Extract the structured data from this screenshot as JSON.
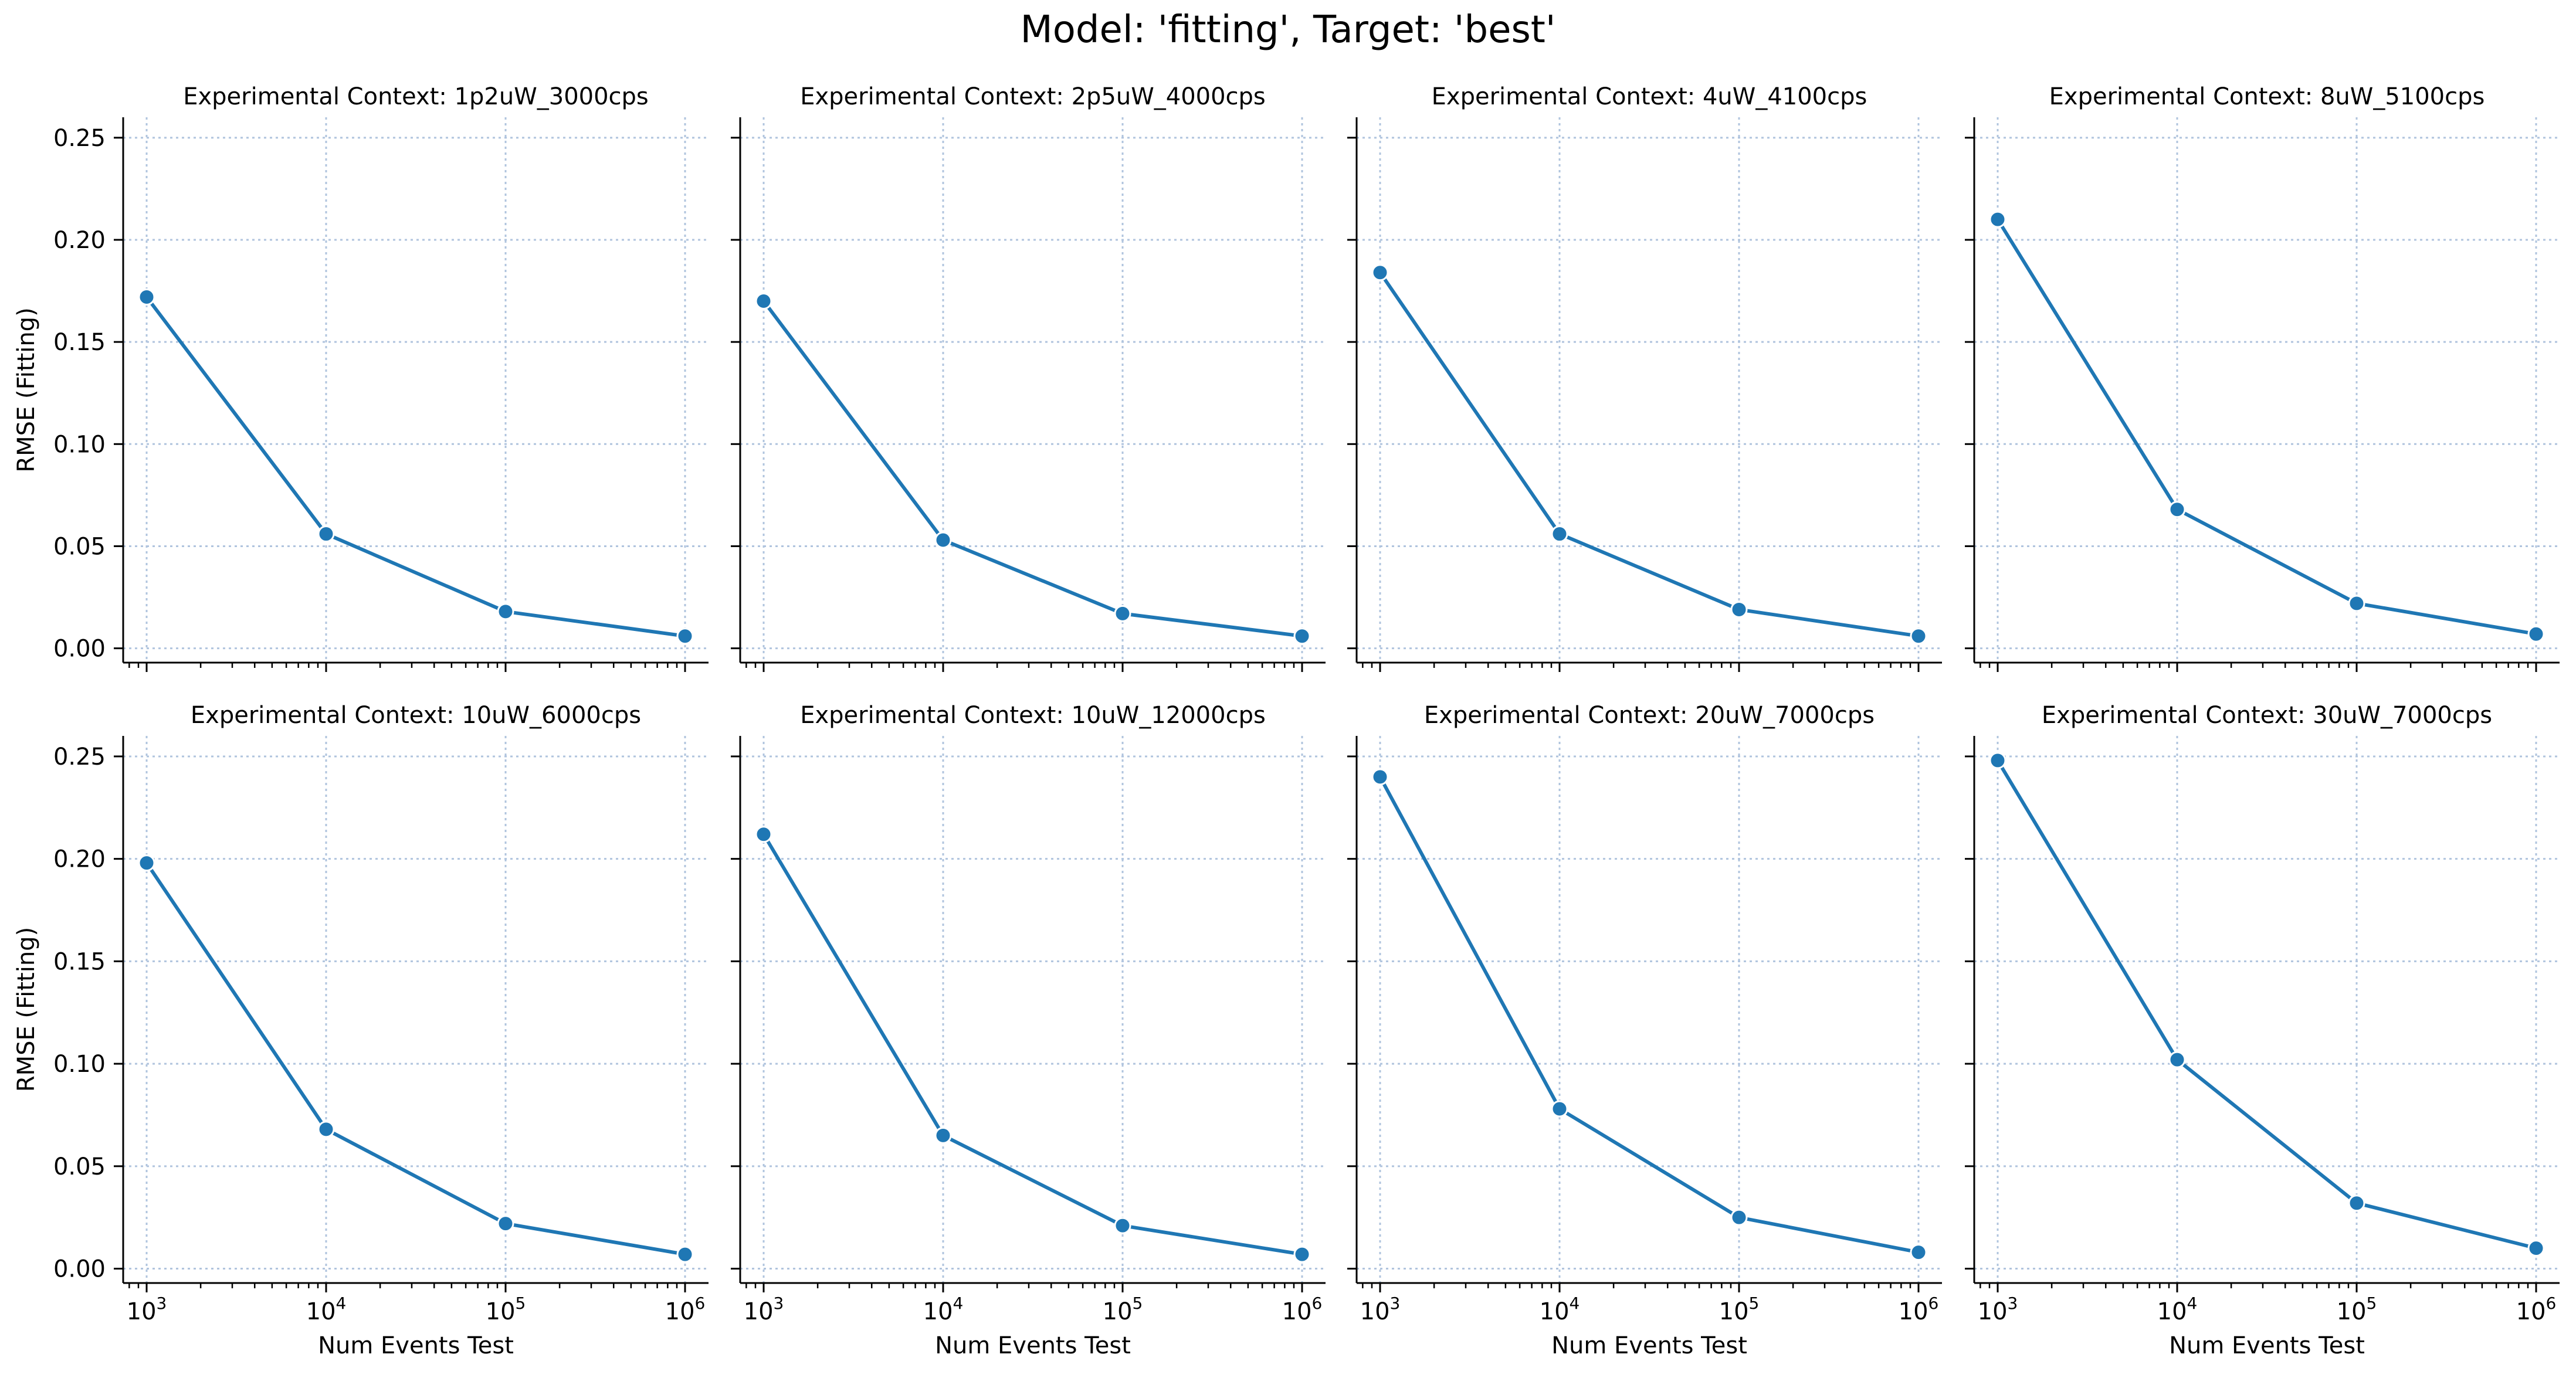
{
  "figure_title": "Model: 'fitting', Target: 'best'",
  "colors": {
    "series": "#1f77b4",
    "grid": "#b0c4de",
    "axis": "#000000"
  },
  "chart_data": [
    {
      "type": "line",
      "title": "Experimental Context: 1p2uW_3000cps",
      "xlabel": "",
      "ylabel": "RMSE (Fitting)",
      "xscale": "log",
      "x": [
        1000,
        10000,
        100000,
        1000000
      ],
      "xtick_labels": [
        {
          "base": "10",
          "exp": "3"
        },
        {
          "base": "10",
          "exp": "4"
        },
        {
          "base": "10",
          "exp": "5"
        },
        {
          "base": "10",
          "exp": "6"
        }
      ],
      "yticks": [
        "0.00",
        "0.05",
        "0.10",
        "0.15",
        "0.20",
        "0.25"
      ],
      "ylim": [
        -0.007,
        0.26
      ],
      "grid": true,
      "series": [
        {
          "values": [
            0.172,
            0.056,
            0.018,
            0.006
          ]
        }
      ]
    },
    {
      "type": "line",
      "title": "Experimental Context: 2p5uW_4000cps",
      "xlabel": "",
      "ylabel": "",
      "xscale": "log",
      "x": [
        1000,
        10000,
        100000,
        1000000
      ],
      "grid": true,
      "series": [
        {
          "values": [
            0.17,
            0.053,
            0.017,
            0.006
          ]
        }
      ]
    },
    {
      "type": "line",
      "title": "Experimental Context: 4uW_4100cps",
      "xlabel": "",
      "ylabel": "",
      "xscale": "log",
      "x": [
        1000,
        10000,
        100000,
        1000000
      ],
      "grid": true,
      "series": [
        {
          "values": [
            0.184,
            0.056,
            0.019,
            0.006
          ]
        }
      ]
    },
    {
      "type": "line",
      "title": "Experimental Context: 8uW_5100cps",
      "xlabel": "",
      "ylabel": "",
      "xscale": "log",
      "x": [
        1000,
        10000,
        100000,
        1000000
      ],
      "grid": true,
      "series": [
        {
          "values": [
            0.21,
            0.068,
            0.022,
            0.007
          ]
        }
      ]
    },
    {
      "type": "line",
      "title": "Experimental Context: 10uW_6000cps",
      "xlabel": "Num Events Test",
      "ylabel": "RMSE (Fitting)",
      "xscale": "log",
      "x": [
        1000,
        10000,
        100000,
        1000000
      ],
      "grid": true,
      "series": [
        {
          "values": [
            0.198,
            0.068,
            0.022,
            0.007
          ]
        }
      ]
    },
    {
      "type": "line",
      "title": "Experimental Context: 10uW_12000cps",
      "xlabel": "Num Events Test",
      "ylabel": "",
      "xscale": "log",
      "x": [
        1000,
        10000,
        100000,
        1000000
      ],
      "grid": true,
      "series": [
        {
          "values": [
            0.212,
            0.065,
            0.021,
            0.007
          ]
        }
      ]
    },
    {
      "type": "line",
      "title": "Experimental Context: 20uW_7000cps",
      "xlabel": "Num Events Test",
      "ylabel": "",
      "xscale": "log",
      "x": [
        1000,
        10000,
        100000,
        1000000
      ],
      "grid": true,
      "series": [
        {
          "values": [
            0.24,
            0.078,
            0.025,
            0.008
          ]
        }
      ]
    },
    {
      "type": "line",
      "title": "Experimental Context: 30uW_7000cps",
      "xlabel": "Num Events Test",
      "ylabel": "",
      "xscale": "log",
      "x": [
        1000,
        10000,
        100000,
        1000000
      ],
      "grid": true,
      "series": [
        {
          "values": [
            0.248,
            0.102,
            0.032,
            0.01
          ]
        }
      ]
    }
  ]
}
